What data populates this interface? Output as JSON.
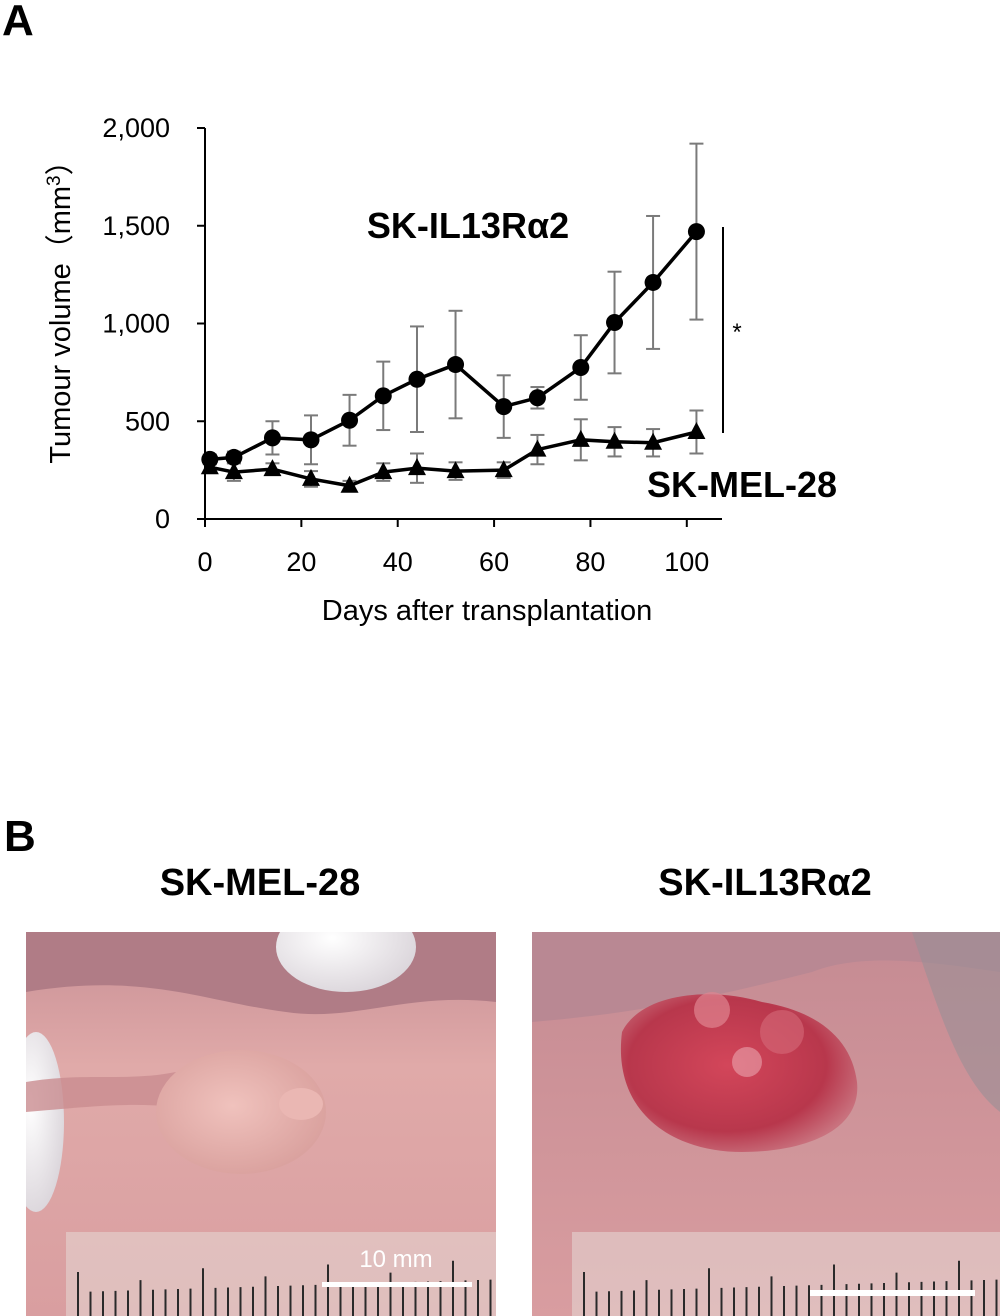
{
  "panel_a_label": "A",
  "panel_b_label": "B",
  "chart_data": {
    "type": "line",
    "title": "",
    "xlabel": "Days after transplantation",
    "ylabel": "Tumour volume（mm3）",
    "ylabel_main": "Tumour volume（mm",
    "ylabel_sup": "3",
    "ylabel_close": "）",
    "xlim": [
      0,
      108
    ],
    "ylim": [
      0,
      2000
    ],
    "xticks": [
      0,
      20,
      40,
      60,
      80,
      100
    ],
    "xtick_labels": [
      "0",
      "20",
      "40",
      "60",
      "80",
      "100"
    ],
    "yticks": [
      0,
      500,
      1000,
      1500,
      2000
    ],
    "ytick_labels": [
      "0",
      "500",
      "1,000",
      "1,500",
      "2,000"
    ],
    "grid": false,
    "series": [
      {
        "name": "SK-IL13Rα2",
        "marker": "circle",
        "x": [
          1,
          6,
          14,
          22,
          30,
          37,
          44,
          52,
          62,
          69,
          78,
          85,
          93,
          102
        ],
        "y": [
          305,
          315,
          415,
          405,
          505,
          630,
          715,
          790,
          575,
          620,
          775,
          1005,
          1210,
          1470
        ],
        "err": [
          25,
          30,
          85,
          125,
          130,
          175,
          270,
          275,
          160,
          55,
          165,
          260,
          340,
          450
        ]
      },
      {
        "name": "SK-MEL-28",
        "marker": "triangle",
        "x": [
          1,
          6,
          14,
          22,
          30,
          37,
          44,
          52,
          62,
          69,
          78,
          85,
          93,
          102
        ],
        "y": [
          265,
          240,
          255,
          205,
          170,
          240,
          260,
          245,
          250,
          355,
          405,
          395,
          390,
          445
        ],
        "err": [
          30,
          45,
          30,
          40,
          25,
          45,
          75,
          45,
          40,
          75,
          105,
          75,
          70,
          110
        ]
      }
    ],
    "annotations": [
      {
        "text": "SK-IL13Rα2"
      },
      {
        "text": "SK-MEL-28"
      },
      {
        "text": "*"
      }
    ]
  },
  "photos": {
    "left_title": "SK-MEL-28",
    "right_title": "SK-IL13Rα2",
    "scale_bar_label": "10 mm"
  }
}
